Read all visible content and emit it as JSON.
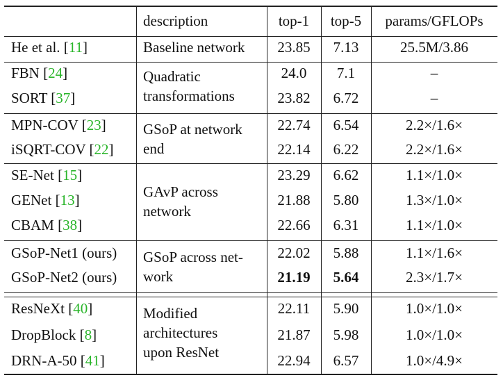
{
  "header": {
    "description": "description",
    "top1": "top-1",
    "top5": "top-5",
    "params": "params/GFLOPs"
  },
  "groups": [
    {
      "description": "Baseline network",
      "rows": [
        {
          "name": "He et al. [",
          "cite": "11",
          "close": "]",
          "top1": "23.85",
          "top5": "7.13",
          "params": "25.5M/3.86"
        }
      ]
    },
    {
      "description": "Quadratic transformations",
      "rows": [
        {
          "name": "FBN [",
          "cite": "24",
          "close": "]",
          "top1": "24.0",
          "top5": "7.1",
          "params": "–"
        },
        {
          "name": "SORT [",
          "cite": "37",
          "close": "]",
          "top1": "23.82",
          "top5": "6.72",
          "params": "–"
        }
      ]
    },
    {
      "description": "GSoP at network end",
      "rows": [
        {
          "name": "MPN-COV [",
          "cite": "23",
          "close": "]",
          "top1": "22.74",
          "top5": "6.54",
          "params": "2.2×/1.6×"
        },
        {
          "name": "iSQRT-COV [",
          "cite": "22",
          "close": "]",
          "top1": "22.14",
          "top5": "6.22",
          "params": "2.2×/1.6×"
        }
      ]
    },
    {
      "description": "GAvP across network",
      "rows": [
        {
          "name": "SE-Net [",
          "cite": "15",
          "close": "]",
          "top1": "23.29",
          "top5": "6.62",
          "params": "1.1×/1.0×"
        },
        {
          "name": "GENet [",
          "cite": "13",
          "close": "]",
          "top1": "21.88",
          "top5": "5.80",
          "params": "1.3×/1.0×"
        },
        {
          "name": "CBAM [",
          "cite": "38",
          "close": "]",
          "top1": "22.66",
          "top5": "6.31",
          "params": "1.1×/1.0×"
        }
      ]
    },
    {
      "description": "GSoP across net- work",
      "rows": [
        {
          "name": "GSoP-Net1 (ours)",
          "cite": "",
          "close": "",
          "top1": "22.02",
          "top5": "5.88",
          "params": "1.1×/1.6×"
        },
        {
          "name": "GSoP-Net2 (ours)",
          "cite": "",
          "close": "",
          "top1": "21.19",
          "top5": "5.64",
          "params": "2.3×/1.7×"
        }
      ]
    },
    {
      "description": "Modified architectures upon ResNet",
      "rows": [
        {
          "name": "ResNeXt [",
          "cite": "40",
          "close": "]",
          "top1": "22.11",
          "top5": "5.90",
          "params": "1.0×/1.0×"
        },
        {
          "name": "DropBlock [",
          "cite": "8",
          "close": "]",
          "top1": "21.87",
          "top5": "5.98",
          "params": "1.0×/1.0×"
        },
        {
          "name": "DRN-A-50 [",
          "cite": "41",
          "close": "]",
          "top1": "22.94",
          "top5": "6.57",
          "params": "1.0×/4.9×"
        }
      ]
    }
  ],
  "desc_lines": {
    "g0": [
      "Baseline network"
    ],
    "g1": [
      "Quadratic",
      "transformations"
    ],
    "g2": [
      "GSoP at network",
      "end"
    ],
    "g3": [
      "GAvP across",
      "network"
    ],
    "g4": [
      "GSoP across net-",
      "work"
    ],
    "g5": [
      "Modified",
      "architectures",
      "upon ResNet"
    ]
  },
  "colors": {
    "citation": "#2ab52a",
    "rule": "#222222"
  }
}
